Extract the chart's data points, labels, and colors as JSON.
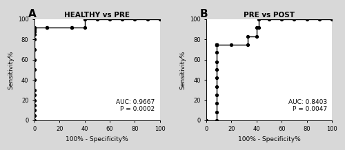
{
  "panel_A": {
    "title": "HEALTHY vs PRE",
    "auc_text": "AUC: 0.9667",
    "p_text": "P = 0.0002",
    "xlabel": "100% - Specificity%",
    "ylabel": "Sensitivity%",
    "roc_x": [
      0,
      0,
      0,
      0,
      0,
      0,
      0,
      0,
      0,
      0,
      0,
      0,
      0,
      0,
      0,
      0,
      0,
      10,
      10,
      30,
      30,
      40,
      40,
      50,
      60,
      70,
      80,
      90,
      100
    ],
    "roc_y": [
      0,
      5,
      10,
      15,
      20,
      25,
      30,
      40,
      50,
      60,
      70,
      80,
      85,
      88,
      90,
      91,
      92,
      92,
      92,
      92,
      92,
      92,
      100,
      100,
      100,
      100,
      100,
      100,
      100
    ],
    "xlim": [
      0,
      100
    ],
    "ylim": [
      0,
      100
    ],
    "xticks": [
      0,
      20,
      40,
      60,
      80,
      100
    ],
    "yticks": [
      0,
      20,
      40,
      60,
      80,
      100
    ]
  },
  "panel_B": {
    "title": "PRE vs POST",
    "auc_text": "AUC: 0.8403",
    "p_text": "P = 0.0047",
    "xlabel": "100% - Specificity%",
    "ylabel": "Sensitivity%",
    "roc_x": [
      0,
      8,
      8,
      8,
      8,
      8,
      8,
      8,
      8,
      8,
      8,
      8,
      8,
      8,
      8,
      20,
      33,
      33,
      40,
      40,
      42,
      42,
      50,
      60,
      70,
      80,
      90,
      100
    ],
    "roc_y": [
      0,
      0,
      8,
      17,
      25,
      33,
      42,
      50,
      58,
      67,
      75,
      75,
      75,
      75,
      75,
      75,
      75,
      83,
      83,
      92,
      92,
      100,
      100,
      100,
      100,
      100,
      100,
      100
    ],
    "xlim": [
      0,
      100
    ],
    "ylim": [
      0,
      100
    ],
    "xticks": [
      0,
      20,
      40,
      60,
      80,
      100
    ],
    "yticks": [
      0,
      20,
      40,
      60,
      80,
      100
    ]
  },
  "bg_color": "#d8d8d8",
  "plot_bg_color": "#ffffff",
  "line_color": "#000000",
  "marker": "o",
  "markersize": 2.8,
  "linewidth": 1.0,
  "label_fontsize": 6.5,
  "title_fontsize": 7.5,
  "tick_fontsize": 6.0,
  "annot_fontsize": 6.5,
  "panel_label_fontsize": 11
}
